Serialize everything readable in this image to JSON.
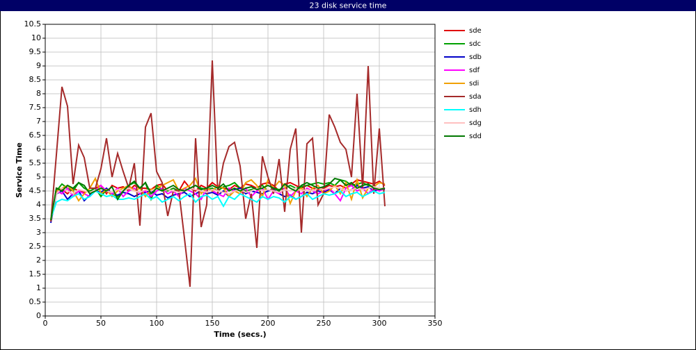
{
  "chart_data": {
    "type": "line",
    "title": "23 disk service time",
    "x_label": "Time (secs.)",
    "y_label": "Service Time",
    "xlim": [
      0,
      350
    ],
    "xticks": [
      0,
      50,
      100,
      150,
      200,
      250,
      300,
      350
    ],
    "ylim": [
      0,
      10.5
    ],
    "yticks": [
      0,
      0.5,
      1,
      1.5,
      2,
      2.5,
      3,
      3.5,
      4,
      4.5,
      5,
      5.5,
      6,
      6.5,
      7,
      7.5,
      8,
      8.5,
      9,
      9.5,
      10,
      10.5
    ],
    "grid": true,
    "x": [
      5,
      10,
      15,
      20,
      25,
      30,
      35,
      40,
      45,
      50,
      55,
      60,
      65,
      70,
      75,
      80,
      85,
      90,
      95,
      100,
      105,
      110,
      115,
      120,
      125,
      130,
      135,
      140,
      145,
      150,
      155,
      160,
      165,
      170,
      175,
      180,
      185,
      190,
      195,
      200,
      205,
      210,
      215,
      220,
      225,
      230,
      235,
      240,
      245,
      250,
      255,
      260,
      265,
      270,
      275,
      280,
      285,
      290,
      295,
      300,
      305
    ],
    "series": [
      {
        "name": "sde",
        "color": "#e00000",
        "values": [
          3.4,
          4.6,
          4.55,
          4.4,
          4.6,
          4.5,
          4.45,
          4.5,
          4.6,
          4.7,
          4.4,
          4.7,
          4.6,
          4.65,
          4.5,
          4.7,
          4.6,
          4.6,
          4.55,
          4.7,
          4.75,
          4.5,
          4.6,
          4.5,
          4.85,
          4.6,
          4.5,
          4.7,
          4.6,
          4.8,
          4.65,
          4.6,
          4.55,
          4.7,
          4.6,
          4.75,
          4.7,
          4.6,
          4.75,
          4.8,
          4.7,
          4.5,
          4.75,
          4.8,
          4.7,
          4.6,
          4.7,
          4.6,
          4.55,
          4.6,
          4.7,
          4.65,
          4.7,
          4.6,
          4.75,
          4.9,
          4.85,
          4.8,
          4.75,
          4.85,
          4.7
        ]
      },
      {
        "name": "sdc",
        "color": "#00a000",
        "values": [
          3.5,
          4.5,
          4.75,
          4.6,
          4.5,
          4.8,
          4.6,
          4.5,
          4.6,
          4.3,
          4.55,
          4.4,
          4.3,
          4.5,
          4.7,
          4.8,
          4.6,
          4.8,
          4.2,
          4.7,
          4.55,
          4.5,
          4.6,
          4.45,
          4.5,
          4.6,
          4.7,
          4.6,
          4.55,
          4.6,
          4.5,
          4.65,
          4.7,
          4.8,
          4.6,
          4.5,
          4.55,
          4.6,
          4.7,
          4.5,
          4.6,
          4.55,
          4.6,
          4.7,
          4.6,
          4.65,
          4.7,
          4.75,
          4.8,
          4.75,
          4.8,
          4.7,
          4.9,
          4.85,
          4.7,
          4.75,
          4.8,
          4.7,
          4.65,
          4.6,
          4.6
        ]
      },
      {
        "name": "sdb",
        "color": "#0000c8",
        "values": [
          3.35,
          4.4,
          4.5,
          4.2,
          4.4,
          4.5,
          4.15,
          4.35,
          4.5,
          4.45,
          4.6,
          4.4,
          4.35,
          4.45,
          4.4,
          4.3,
          4.4,
          4.45,
          4.5,
          4.35,
          4.4,
          4.25,
          4.35,
          4.4,
          4.45,
          4.3,
          4.4,
          4.5,
          4.4,
          4.45,
          4.35,
          4.5,
          4.3,
          4.55,
          4.6,
          4.4,
          4.5,
          4.45,
          4.4,
          4.5,
          4.55,
          4.4,
          4.3,
          4.35,
          4.2,
          4.3,
          4.45,
          4.4,
          4.5,
          4.45,
          4.55,
          4.4,
          4.6,
          4.5,
          4.55,
          4.7,
          4.6,
          4.65,
          4.5,
          4.55,
          4.55
        ]
      },
      {
        "name": "sdf",
        "color": "#ff00ff",
        "values": [
          3.4,
          4.5,
          4.4,
          4.6,
          4.3,
          4.5,
          4.4,
          4.3,
          4.5,
          4.7,
          4.5,
          4.4,
          4.6,
          4.3,
          4.5,
          4.6,
          4.4,
          4.5,
          4.3,
          4.5,
          4.6,
          4.4,
          4.5,
          4.3,
          4.6,
          4.5,
          4.4,
          4.2,
          4.6,
          4.5,
          4.4,
          4.3,
          4.6,
          4.5,
          4.4,
          4.6,
          4.3,
          4.5,
          4.6,
          4.2,
          4.5,
          4.4,
          4.6,
          4.3,
          4.5,
          4.4,
          4.6,
          4.5,
          4.4,
          4.5,
          4.6,
          4.4,
          4.15,
          4.6,
          4.7,
          4.5,
          4.6,
          4.4,
          4.6,
          4.5,
          4.6
        ]
      },
      {
        "name": "sdi",
        "color": "#f0a000",
        "values": [
          3.4,
          4.5,
          4.6,
          4.7,
          4.5,
          4.15,
          4.4,
          4.6,
          4.95,
          4.4,
          4.55,
          4.3,
          4.5,
          4.6,
          4.7,
          4.5,
          4.6,
          4.3,
          4.55,
          4.6,
          4.7,
          4.8,
          4.9,
          4.5,
          4.6,
          4.7,
          4.95,
          4.4,
          4.6,
          4.5,
          4.7,
          4.6,
          4.3,
          4.5,
          4.4,
          4.8,
          4.9,
          4.7,
          4.3,
          4.9,
          4.6,
          4.85,
          4.7,
          4.05,
          4.5,
          4.6,
          4.3,
          4.6,
          4.7,
          4.4,
          4.5,
          4.7,
          4.4,
          4.8,
          4.2,
          4.9,
          4.25,
          4.6,
          4.65,
          4.8,
          4.75
        ]
      },
      {
        "name": "sda",
        "color": "#a52a2a",
        "values": [
          3.4,
          5.8,
          8.25,
          7.55,
          4.75,
          6.15,
          5.7,
          4.6,
          4.6,
          5.3,
          6.4,
          5.0,
          5.85,
          5.2,
          4.6,
          5.5,
          3.25,
          6.8,
          7.3,
          5.2,
          4.8,
          3.6,
          4.5,
          4.5,
          2.8,
          1.05,
          6.4,
          3.2,
          4.0,
          9.2,
          4.4,
          5.5,
          6.1,
          6.25,
          5.4,
          3.5,
          4.4,
          2.45,
          5.75,
          5.0,
          4.4,
          5.65,
          3.75,
          6.0,
          6.75,
          3.0,
          6.2,
          6.4,
          4.0,
          4.4,
          7.25,
          6.8,
          6.25,
          6.0,
          5.0,
          8.0,
          4.6,
          9.0,
          4.4,
          6.75,
          3.95
        ]
      },
      {
        "name": "sdh",
        "color": "#00ffff",
        "values": [
          3.5,
          4.1,
          4.2,
          4.15,
          4.3,
          4.4,
          4.2,
          4.3,
          4.5,
          4.4,
          4.3,
          4.35,
          4.2,
          4.2,
          4.25,
          4.2,
          4.3,
          4.4,
          4.2,
          4.3,
          4.1,
          4.2,
          4.3,
          4.15,
          4.3,
          4.4,
          4.1,
          4.3,
          4.35,
          4.2,
          4.3,
          3.95,
          4.3,
          4.2,
          4.4,
          4.3,
          4.2,
          4.1,
          4.3,
          4.2,
          4.3,
          4.25,
          4.1,
          4.3,
          4.2,
          4.3,
          4.4,
          4.2,
          4.3,
          4.4,
          4.35,
          4.4,
          4.5,
          4.3,
          4.4,
          4.45,
          4.3,
          4.4,
          4.5,
          4.4,
          4.45
        ]
      },
      {
        "name": "sdg",
        "color": "#ffc0c0",
        "values": [
          3.5,
          4.4,
          4.6,
          4.5,
          4.4,
          4.55,
          4.5,
          4.45,
          4.5,
          4.6,
          4.5,
          4.45,
          4.55,
          4.5,
          4.6,
          4.5,
          4.45,
          4.55,
          4.5,
          4.6,
          4.5,
          4.55,
          4.5,
          4.45,
          4.5,
          4.6,
          4.55,
          4.5,
          4.45,
          4.55,
          4.5,
          4.45,
          4.4,
          4.5,
          4.55,
          4.45,
          4.5,
          4.6,
          4.5,
          4.55,
          4.5,
          4.45,
          4.55,
          4.5,
          4.6,
          4.5,
          4.55,
          4.5,
          4.6,
          4.55,
          4.6,
          4.65,
          4.6,
          4.5,
          4.55,
          4.6,
          4.55,
          4.6,
          4.65,
          4.6,
          4.6
        ]
      },
      {
        "name": "sdd",
        "color": "#007800",
        "values": [
          3.45,
          4.6,
          4.5,
          4.7,
          4.6,
          4.8,
          4.7,
          4.4,
          4.5,
          4.6,
          4.5,
          4.65,
          4.2,
          4.5,
          4.7,
          4.85,
          4.6,
          4.8,
          4.4,
          4.6,
          4.5,
          4.6,
          4.7,
          4.55,
          4.5,
          4.6,
          4.7,
          4.55,
          4.6,
          4.7,
          4.6,
          4.75,
          4.5,
          4.6,
          4.5,
          4.6,
          4.65,
          4.55,
          4.6,
          4.7,
          4.6,
          4.5,
          4.75,
          4.6,
          4.5,
          4.7,
          4.8,
          4.7,
          4.6,
          4.65,
          4.75,
          4.95,
          4.9,
          4.7,
          4.8,
          4.6,
          4.7,
          4.75,
          4.6,
          4.55,
          4.6
        ]
      }
    ]
  }
}
